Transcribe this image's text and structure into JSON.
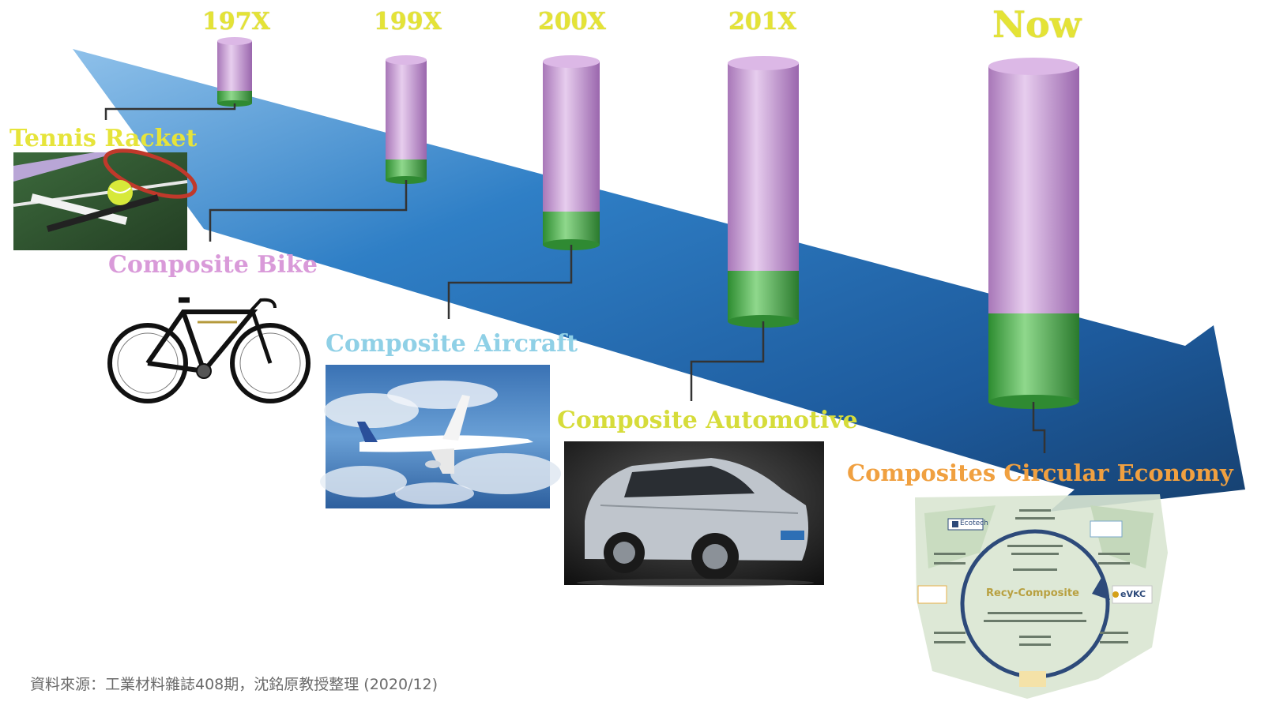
{
  "eras": [
    "197X",
    "199X",
    "200X",
    "201X",
    "Now"
  ],
  "milestones": [
    {
      "label": "Tennis Racket",
      "color": "#e6e43a"
    },
    {
      "label": "Composite Bike",
      "color": "#d99ad9"
    },
    {
      "label": "Composite Aircraft",
      "color": "#8fd0e6"
    },
    {
      "label": "Composite Automotive",
      "color": "#d6dc3a"
    },
    {
      "label": "Composites Circular Economy",
      "color": "#f0a040"
    }
  ],
  "circular_figure": {
    "center_text": "Recy-Composite",
    "logos": [
      "Ecotech",
      "eVKC"
    ]
  },
  "source": "資料來源：工業材料雜誌408期，沈銘原教授整理 (2020/12)",
  "colors": {
    "arrow": "#1f6fb8",
    "cylinder_top": "#c89bd6",
    "cylinder_base": "#4fae4f"
  }
}
